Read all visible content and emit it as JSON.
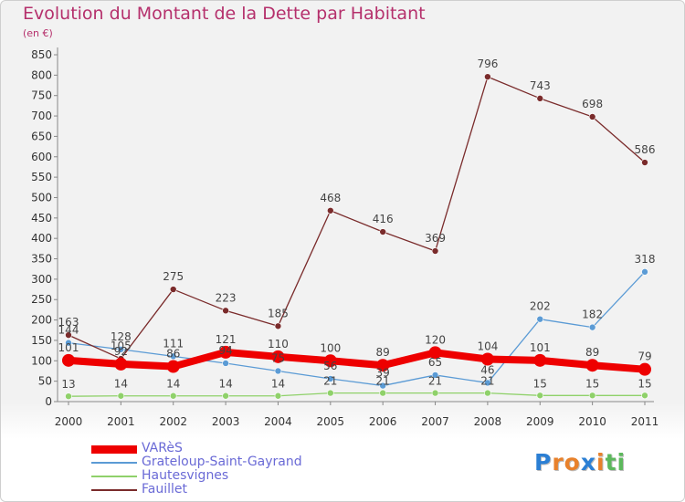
{
  "header": {
    "title": "Evolution du Montant de la Dette par Habitant",
    "subtitle": "(en €)"
  },
  "logo": {
    "letters": [
      "P",
      "r",
      "o",
      "x",
      "i",
      "t",
      "i"
    ],
    "colors": [
      "#2b7fd4",
      "#e8812b",
      "#e8812b",
      "#2b7fd4",
      "#e8812b",
      "#5cb85c",
      "#5cb85c"
    ]
  },
  "chart_data": {
    "type": "line",
    "title": "Evolution du Montant de la Dette par Habitant",
    "subtitle": "(en €)",
    "x": [
      "2000",
      "2001",
      "2002",
      "2003",
      "2004",
      "2005",
      "2006",
      "2007",
      "2008",
      "2009",
      "2010",
      "2011"
    ],
    "ylim": [
      0,
      850
    ],
    "yticks": [
      0,
      50,
      100,
      150,
      200,
      250,
      300,
      350,
      400,
      450,
      500,
      550,
      600,
      650,
      700,
      750,
      800,
      850
    ],
    "grid": false,
    "legend_position": "bottom-left",
    "series": [
      {
        "name": "VARèS",
        "color": "#ee0000",
        "values": [
          101,
          92,
          86,
          121,
          110,
          100,
          89,
          120,
          104,
          101,
          89,
          79
        ]
      },
      {
        "name": "Grateloup-Saint-Gayrand",
        "color": "#5b9bd5",
        "values": [
          144,
          128,
          111,
          94,
          75,
          56,
          39,
          65,
          46,
          202,
          182,
          318
        ]
      },
      {
        "name": "Hautesvignes",
        "color": "#8fd16a",
        "values": [
          13,
          14,
          14,
          14,
          14,
          21,
          21,
          21,
          21,
          15,
          15,
          15
        ]
      },
      {
        "name": "Fauillet",
        "color": "#7a2b2b",
        "values": [
          163,
          105,
          275,
          223,
          185,
          468,
          416,
          369,
          796,
          743,
          698,
          586
        ]
      }
    ]
  }
}
